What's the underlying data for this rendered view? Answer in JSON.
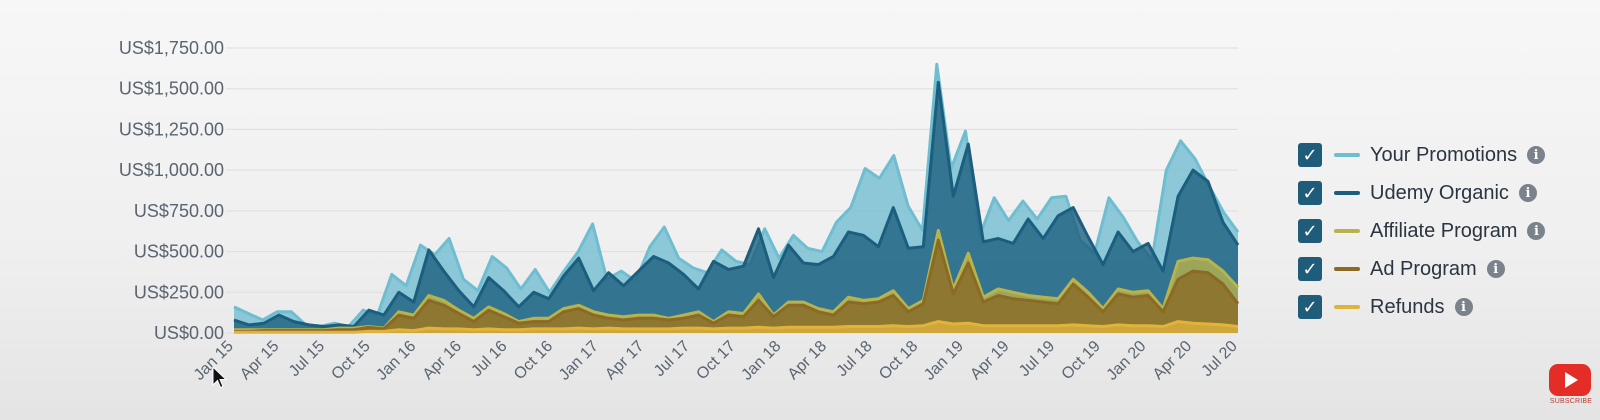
{
  "chart_data": {
    "type": "area",
    "stacked": false,
    "y_ticks": [
      "US$0.00",
      "US$250.00",
      "US$500.00",
      "US$750.00",
      "US$1,000.00",
      "US$1,250.00",
      "US$1,500.00",
      "US$1,750.00"
    ],
    "ylim": [
      0,
      1750
    ],
    "x_ticks": [
      "Jan 15",
      "Apr 15",
      "Jul 15",
      "Oct 15",
      "Jan 16",
      "Apr 16",
      "Jul 16",
      "Oct 16",
      "Jan 17",
      "Apr 17",
      "Jul 17",
      "Oct 17",
      "Jan 18",
      "Apr 18",
      "Jul 18",
      "Oct 18",
      "Jan 19",
      "Apr 19",
      "Jul 19",
      "Oct 19",
      "Jan 20",
      "Apr 20",
      "Jul 20"
    ],
    "grid": true,
    "legend_position": "right",
    "series": [
      {
        "name": "Your Promotions",
        "color": "#6fbdd1",
        "values": [
          160,
          120,
          80,
          130,
          130,
          50,
          40,
          60,
          40,
          140,
          110,
          360,
          290,
          540,
          480,
          580,
          330,
          260,
          470,
          400,
          270,
          390,
          250,
          380,
          500,
          670,
          330,
          380,
          320,
          530,
          650,
          460,
          400,
          370,
          510,
          440,
          420,
          640,
          460,
          600,
          520,
          500,
          680,
          770,
          1010,
          950,
          1090,
          780,
          630,
          1650,
          1010,
          1240,
          600,
          830,
          690,
          810,
          700,
          830,
          840,
          570,
          490,
          830,
          710,
          560,
          450,
          1000,
          1180,
          1070,
          900,
          740,
          620
        ]
      },
      {
        "name": "Udemy Organic",
        "color": "#1b5e7d",
        "values": [
          80,
          50,
          60,
          110,
          70,
          50,
          40,
          50,
          40,
          140,
          110,
          250,
          190,
          510,
          380,
          260,
          160,
          340,
          260,
          160,
          250,
          210,
          350,
          460,
          260,
          370,
          290,
          380,
          470,
          430,
          360,
          270,
          440,
          390,
          410,
          640,
          340,
          540,
          430,
          420,
          470,
          620,
          600,
          530,
          770,
          520,
          530,
          1540,
          840,
          1160,
          560,
          580,
          550,
          700,
          580,
          720,
          770,
          590,
          420,
          620,
          500,
          550,
          380,
          840,
          1000,
          930,
          680,
          540
        ]
      },
      {
        "name": "Affiliate Program",
        "color": "#b8b34c",
        "values": [
          20,
          20,
          20,
          20,
          20,
          20,
          20,
          30,
          30,
          40,
          30,
          130,
          110,
          230,
          200,
          140,
          90,
          160,
          120,
          70,
          90,
          90,
          150,
          170,
          130,
          110,
          100,
          110,
          110,
          90,
          110,
          130,
          70,
          130,
          120,
          240,
          110,
          190,
          190,
          150,
          130,
          220,
          200,
          210,
          260,
          150,
          200,
          630,
          270,
          490,
          220,
          270,
          250,
          230,
          220,
          210,
          330,
          250,
          150,
          270,
          250,
          260,
          150,
          440,
          460,
          450,
          380,
          280
        ]
      },
      {
        "name": "Ad Program",
        "color": "#8a6a24",
        "values": [
          10,
          10,
          15,
          15,
          15,
          15,
          15,
          20,
          20,
          35,
          25,
          110,
          90,
          200,
          170,
          120,
          70,
          140,
          100,
          60,
          70,
          70,
          130,
          150,
          110,
          90,
          80,
          90,
          90,
          80,
          90,
          110,
          60,
          110,
          100,
          200,
          100,
          170,
          170,
          130,
          110,
          190,
          180,
          190,
          230,
          130,
          180,
          570,
          240,
          430,
          190,
          230,
          210,
          200,
          190,
          180,
          300,
          220,
          130,
          240,
          220,
          230,
          130,
          330,
          380,
          370,
          300,
          180
        ]
      },
      {
        "name": "Refunds",
        "color": "#e0b33d",
        "values": [
          5,
          5,
          5,
          5,
          5,
          5,
          5,
          5,
          5,
          10,
          10,
          20,
          15,
          30,
          25,
          25,
          20,
          25,
          20,
          20,
          25,
          25,
          25,
          30,
          25,
          30,
          25,
          25,
          25,
          25,
          30,
          30,
          25,
          30,
          30,
          35,
          30,
          35,
          35,
          35,
          35,
          40,
          40,
          40,
          45,
          40,
          45,
          70,
          55,
          60,
          45,
          45,
          45,
          45,
          45,
          45,
          50,
          45,
          40,
          50,
          45,
          45,
          40,
          70,
          60,
          55,
          50,
          40
        ]
      }
    ]
  },
  "legend": {
    "items": [
      {
        "label": "Your Promotions",
        "color": "#6fbdd1"
      },
      {
        "label": "Udemy Organic",
        "color": "#1b5e7d"
      },
      {
        "label": "Affiliate Program",
        "color": "#b8b34c"
      },
      {
        "label": "Ad Program",
        "color": "#8a6a24"
      },
      {
        "label": "Refunds",
        "color": "#e0b33d"
      }
    ],
    "check_color": "#1f5c7a",
    "info_symbol": "i",
    "check_symbol": "✓"
  },
  "subscribe": {
    "label": "SUBSCRIBE",
    "color": "#e52d27"
  }
}
